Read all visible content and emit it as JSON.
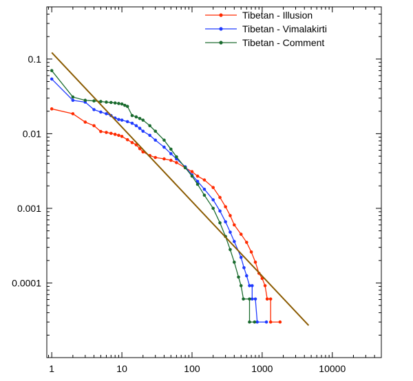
{
  "chart_data": {
    "type": "line",
    "title": "",
    "xlabel": "",
    "ylabel": "",
    "xscale": "log",
    "yscale": "log",
    "xlim": [
      0.85,
      50000
    ],
    "ylim": [
      1e-05,
      0.5
    ],
    "x_ticks": [
      {
        "value": 1,
        "label": "1"
      },
      {
        "value": 10,
        "label": "10"
      },
      {
        "value": 100,
        "label": "100"
      },
      {
        "value": 1000,
        "label": "1000"
      },
      {
        "value": 10000,
        "label": "10000"
      }
    ],
    "y_ticks": [
      {
        "value": 0.1,
        "label": "0.1"
      },
      {
        "value": 0.01,
        "label": "0.01"
      },
      {
        "value": 0.001,
        "label": "0.001"
      },
      {
        "value": 0.0001,
        "label": "0.0001"
      }
    ],
    "grid": false,
    "legend_position": "top-right",
    "series": [
      {
        "name": "Tibetan - Illusion",
        "color": "#ff2a00",
        "points": [
          [
            1,
            0.0215
          ],
          [
            2,
            0.0185
          ],
          [
            3,
            0.0143
          ],
          [
            4,
            0.0128
          ],
          [
            5,
            0.0107
          ],
          [
            6,
            0.0104
          ],
          [
            7,
            0.0101
          ],
          [
            8,
            0.0098
          ],
          [
            9,
            0.0095
          ],
          [
            10,
            0.0092
          ],
          [
            12,
            0.0083
          ],
          [
            14,
            0.0076
          ],
          [
            16,
            0.0071
          ],
          [
            18,
            0.0063
          ],
          [
            20,
            0.0057
          ],
          [
            25,
            0.0051
          ],
          [
            30,
            0.0048
          ],
          [
            40,
            0.0046
          ],
          [
            50,
            0.0044
          ],
          [
            60,
            0.0041
          ],
          [
            80,
            0.0035
          ],
          [
            100,
            0.0031
          ],
          [
            120,
            0.0027
          ],
          [
            150,
            0.0024
          ],
          [
            200,
            0.0019
          ],
          [
            250,
            0.0014
          ],
          [
            300,
            0.00105
          ],
          [
            350,
            0.0008
          ],
          [
            400,
            0.0006
          ],
          [
            500,
            0.00045
          ],
          [
            600,
            0.00035
          ],
          [
            700,
            0.00026
          ],
          [
            800,
            0.00019
          ],
          [
            900,
            0.000135
          ],
          [
            1000,
            0.000115
          ],
          [
            1100,
            9.2e-05
          ],
          [
            1180,
            6.1e-05
          ],
          [
            1180,
            6.1e-05
          ],
          [
            1320,
            6.1e-05
          ],
          [
            1320,
            3e-05
          ],
          [
            1800,
            3e-05
          ]
        ]
      },
      {
        "name": "Tibetan - Vimalakirti",
        "color": "#1f3aff",
        "points": [
          [
            1,
            0.054
          ],
          [
            2,
            0.028
          ],
          [
            3,
            0.0265
          ],
          [
            4,
            0.021
          ],
          [
            5,
            0.0195
          ],
          [
            6,
            0.0185
          ],
          [
            7,
            0.0175
          ],
          [
            8,
            0.0162
          ],
          [
            9,
            0.0155
          ],
          [
            10,
            0.0152
          ],
          [
            12,
            0.0145
          ],
          [
            14,
            0.0138
          ],
          [
            16,
            0.0128
          ],
          [
            18,
            0.0118
          ],
          [
            20,
            0.0108
          ],
          [
            25,
            0.0095
          ],
          [
            30,
            0.0082
          ],
          [
            40,
            0.0066
          ],
          [
            50,
            0.0054
          ],
          [
            60,
            0.0046
          ],
          [
            80,
            0.0036
          ],
          [
            100,
            0.0028
          ],
          [
            120,
            0.0023
          ],
          [
            150,
            0.0018
          ],
          [
            200,
            0.0013
          ],
          [
            250,
            0.00092
          ],
          [
            300,
            0.00066
          ],
          [
            350,
            0.00048
          ],
          [
            400,
            0.00036
          ],
          [
            500,
            0.00022
          ],
          [
            550,
            0.00016
          ],
          [
            600,
            0.000125
          ],
          [
            660,
            9.2e-05
          ],
          [
            720,
            9.2e-05
          ],
          [
            720,
            6.1e-05
          ],
          [
            800,
            6.1e-05
          ],
          [
            850,
            3e-05
          ],
          [
            1150,
            3e-05
          ]
        ]
      },
      {
        "name": "Tibetan - Comment",
        "color": "#1a6b2e",
        "points": [
          [
            1,
            0.07
          ],
          [
            2,
            0.031
          ],
          [
            3,
            0.028
          ],
          [
            4,
            0.0275
          ],
          [
            5,
            0.027
          ],
          [
            6,
            0.0265
          ],
          [
            7,
            0.0262
          ],
          [
            8,
            0.0258
          ],
          [
            9,
            0.0254
          ],
          [
            10,
            0.025
          ],
          [
            11,
            0.024
          ],
          [
            12,
            0.0232
          ],
          [
            14,
            0.0175
          ],
          [
            16,
            0.0168
          ],
          [
            18,
            0.016
          ],
          [
            20,
            0.0152
          ],
          [
            25,
            0.0128
          ],
          [
            30,
            0.0108
          ],
          [
            40,
            0.0082
          ],
          [
            50,
            0.0062
          ],
          [
            60,
            0.0049
          ],
          [
            80,
            0.0035
          ],
          [
            100,
            0.0027
          ],
          [
            120,
            0.0021
          ],
          [
            150,
            0.0015
          ],
          [
            200,
            0.001
          ],
          [
            250,
            0.00064
          ],
          [
            300,
            0.00042
          ],
          [
            350,
            0.00028
          ],
          [
            400,
            0.00019
          ],
          [
            460,
            0.00012
          ],
          [
            500,
            9.2e-05
          ],
          [
            540,
            6.1e-05
          ],
          [
            660,
            6.1e-05
          ],
          [
            660,
            3e-05
          ],
          [
            780,
            3e-05
          ]
        ]
      },
      {
        "name": "",
        "color": "#8a5a00",
        "points": [
          [
            1,
            0.122
          ],
          [
            4600,
            2.7e-05
          ]
        ]
      }
    ]
  }
}
